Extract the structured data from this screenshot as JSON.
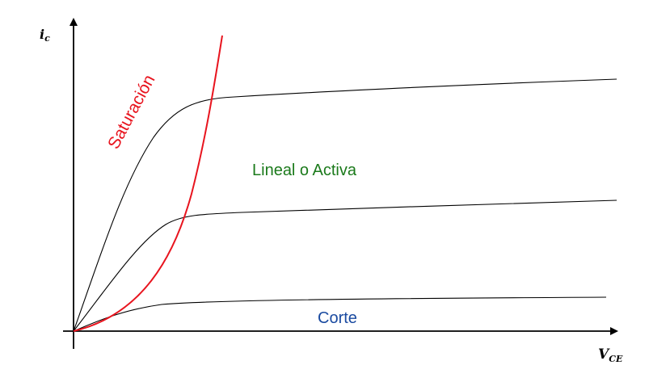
{
  "axes": {
    "y_label_main": "i",
    "y_label_sub": "c",
    "x_label_main": "V",
    "x_label_sub": "CE"
  },
  "regions": {
    "saturation": "Saturación",
    "linear": "Lineal o Activa",
    "cutoff": "Corte"
  },
  "colors": {
    "saturation": "#e8141e",
    "linear": "#1b7a1b",
    "cutoff": "#1a4aa0",
    "curves": "#000000",
    "axes": "#000000"
  }
}
